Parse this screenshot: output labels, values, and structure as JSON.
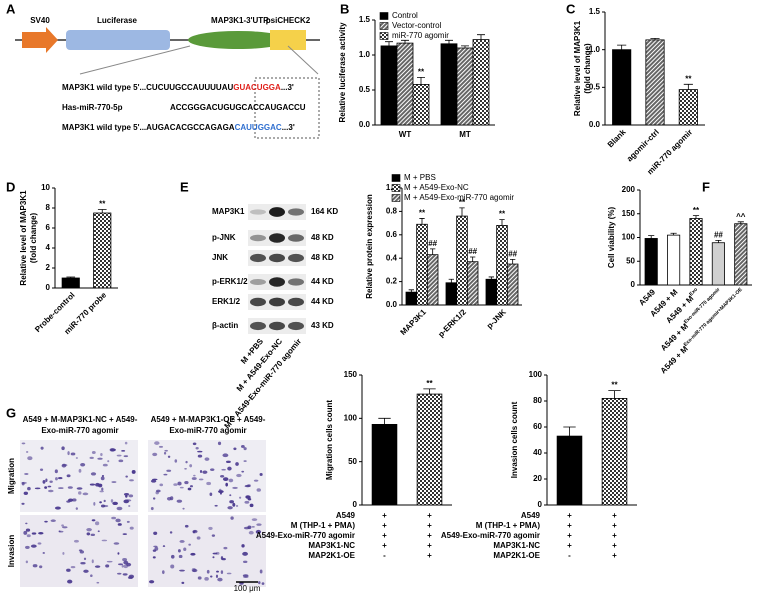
{
  "figure": {
    "panel_labels": [
      "A",
      "B",
      "C",
      "D",
      "E",
      "F",
      "G"
    ],
    "construct": [
      "SV40",
      "Luciferase",
      "MAP3K1-3'UTR",
      "psiCHECK2"
    ],
    "sequences": [
      {
        "prefix": "MAP3K1 wild type 5'...CUCUUGCCAUUUUAU",
        "site": "GUACUGGA",
        "suffix": "...3'"
      },
      {
        "prefix": "Has-miR-770-5p",
        "seq": "ACCGGGACUGUGCACCAUGACCU"
      },
      {
        "prefix": "MAP3K1 wild type 5'...AUGACACGCCAGAGA",
        "site": "CAUUGGAC",
        "suffix": "...3'"
      }
    ],
    "blot": {
      "proteins": [
        "MAP3K1",
        "p-JNK",
        "JNK",
        "p-ERK1/2",
        "ERK1/2",
        "β-actin"
      ],
      "sizes": [
        "164 KD",
        "48 KD",
        "48 KD",
        "44 KD",
        "44 KD",
        "43 KD"
      ],
      "lanes": [
        "M +PBS",
        "M + A549-Exo-NC",
        "M + A549-Exo-miR-770 agomir"
      ]
    },
    "micro": {
      "headers": [
        [
          "A549 + M-MAP3K1-NC + A549-",
          "Exo-miR-770 agomir"
        ],
        [
          "A549 + M-MAP3K1-OE + A549-",
          "Exo-miR-770 agomir"
        ]
      ],
      "rows": [
        "Migration",
        "Invasion"
      ],
      "scale": "100 μm"
    }
  },
  "chart_data": [
    {
      "type": "bar",
      "ylabel": "Relative luciferase activity",
      "categories": [
        "WT",
        "MT"
      ],
      "series": [
        {
          "name": "Control",
          "color": "#000000",
          "pattern": "solid",
          "values": [
            1.13,
            1.16
          ],
          "errors": [
            0.06,
            0.05
          ]
        },
        {
          "name": "Vector-control",
          "color": "#666666",
          "pattern": "stripes",
          "values": [
            1.17,
            1.1
          ],
          "errors": [
            0.04,
            0.03
          ]
        },
        {
          "name": "miR-770 agomir",
          "color": "#333333",
          "pattern": "checker",
          "values": [
            0.58,
            1.22
          ],
          "errors": [
            0.1,
            0.07
          ],
          "significance": [
            "**",
            null
          ]
        }
      ],
      "ylim": [
        0,
        1.5
      ],
      "yticks": [
        {
          "value": 0,
          "label": "0.0"
        },
        0.5,
        {
          "value": 1,
          "label": "1.0"
        },
        1.5
      ]
    },
    {
      "type": "bar",
      "ylabel": [
        "Relative level of MAP3K1",
        "(fold change)"
      ],
      "categories": [
        "Blank",
        "agomir-ctrl",
        "miR-770 agomir"
      ],
      "values": [
        1.0,
        1.13,
        0.47
      ],
      "errors": [
        0.06,
        0.02,
        0.07
      ],
      "significance": [
        null,
        null,
        "**"
      ],
      "colors": [
        "#000000",
        "#666666",
        "#333333"
      ],
      "patterns": [
        "solid",
        "stripes",
        "checker"
      ],
      "ylim": [
        0,
        1.5
      ],
      "yticks": [
        {
          "value": 0,
          "label": "0.0"
        },
        0.5,
        {
          "value": 1,
          "label": "1.0"
        },
        1.5
      ]
    },
    {
      "type": "bar",
      "ylabel": [
        "Relative level of MAP3K1",
        "(fold change)"
      ],
      "categories": [
        "Probe-control",
        "miR-770 probe"
      ],
      "values": [
        1.0,
        7.5
      ],
      "errors": [
        0.1,
        0.35
      ],
      "significance": [
        null,
        "**"
      ],
      "colors": [
        "#000000",
        "#333333"
      ],
      "patterns": [
        "solid",
        "checker"
      ],
      "ylim": [
        0,
        10
      ],
      "yticks": [
        0,
        2,
        4,
        6,
        8,
        10
      ]
    },
    {
      "type": "bar",
      "ylabel": "Relative protein expression",
      "categories": [
        "MAP3K1",
        "p-ERK1/2",
        "p-JNK"
      ],
      "series": [
        {
          "name": "M + PBS",
          "color": "#000000",
          "pattern": "solid",
          "values": [
            0.11,
            0.19,
            0.22
          ],
          "errors": [
            0.02,
            0.03,
            0.02
          ]
        },
        {
          "name": "M + A549-Exo-NC",
          "color": "#333333",
          "pattern": "checker",
          "values": [
            0.69,
            0.76,
            0.68
          ],
          "errors": [
            0.05,
            0.07,
            0.05
          ],
          "significance": [
            "**",
            "**",
            "**"
          ]
        },
        {
          "name": "M + A549-Exo-miR-770 agomir",
          "color": "#666666",
          "pattern": "stripes",
          "values": [
            0.43,
            0.37,
            0.35
          ],
          "errors": [
            0.05,
            0.04,
            0.04
          ],
          "significance": [
            "##",
            "##",
            "##"
          ]
        }
      ],
      "ylim": [
        0,
        1.0
      ],
      "yticks": [
        {
          "value": 0,
          "label": "0.0"
        },
        0.2,
        0.4,
        0.6,
        0.8,
        {
          "value": 1,
          "label": "1.0"
        }
      ]
    },
    {
      "type": "bar",
      "ylabel": "Cell viability (%)",
      "categories": [
        "A549",
        "A549 + M",
        "A549 + M",
        "A549 + M",
        "A549 + M"
      ],
      "category_superscripts": [
        null,
        null,
        "Exo",
        "Exo-miR-770 agomir",
        "Exo-miR-770 agomir+MAP3K1-OE"
      ],
      "values": [
        98,
        105,
        140,
        89,
        129
      ],
      "errors": [
        6,
        4,
        6,
        5,
        4
      ],
      "significance": [
        null,
        null,
        "**",
        "##",
        "^^"
      ],
      "colors": [
        "#000000",
        "#ffffff",
        "#333333",
        "#d0d0d0",
        "#666666"
      ],
      "patterns": [
        "solid",
        "solid",
        "checker",
        "solid",
        "stripes"
      ],
      "ylim": [
        0,
        200
      ],
      "yticks": [
        0,
        50,
        100,
        150,
        200
      ]
    },
    {
      "type": "bar",
      "ylabel": "Migration cells count",
      "categories": [
        null,
        null
      ],
      "values": [
        93,
        128
      ],
      "errors": [
        7,
        6
      ],
      "significance": [
        null,
        "**"
      ],
      "colors": [
        "#000000",
        "#333333"
      ],
      "patterns": [
        "solid",
        "checker"
      ],
      "ylim": [
        0,
        150
      ],
      "yticks": [
        0,
        50,
        100,
        150
      ],
      "table": {
        "rows": [
          "A549",
          "M (THP-1 + PMA)",
          "A549-Exo-miR-770 agomir",
          "MAP3K1-NC",
          "MAP2K1-OE"
        ],
        "cells": [
          [
            "+",
            "+"
          ],
          [
            "+",
            "+"
          ],
          [
            "+",
            "+"
          ],
          [
            "+",
            "+"
          ],
          [
            "-",
            "+"
          ]
        ]
      }
    },
    {
      "type": "bar",
      "ylabel": "Invasion cells count",
      "categories": [
        null,
        null
      ],
      "values": [
        53,
        82
      ],
      "errors": [
        7,
        6
      ],
      "significance": [
        null,
        "**"
      ],
      "colors": [
        "#000000",
        "#333333"
      ],
      "patterns": [
        "solid",
        "checker"
      ],
      "ylim": [
        0,
        100
      ],
      "yticks": [
        0,
        20,
        40,
        60,
        80,
        100
      ],
      "table": {
        "rows": [
          "A549",
          "M (THP-1 + PMA)",
          "A549-Exo-miR-770 agomir",
          "MAP3K1-NC",
          "MAP2K1-OE"
        ],
        "cells": [
          [
            "+",
            "+"
          ],
          [
            "+",
            "+"
          ],
          [
            "+",
            "+"
          ],
          [
            "+",
            "+"
          ],
          [
            "-",
            "+"
          ]
        ]
      }
    }
  ]
}
